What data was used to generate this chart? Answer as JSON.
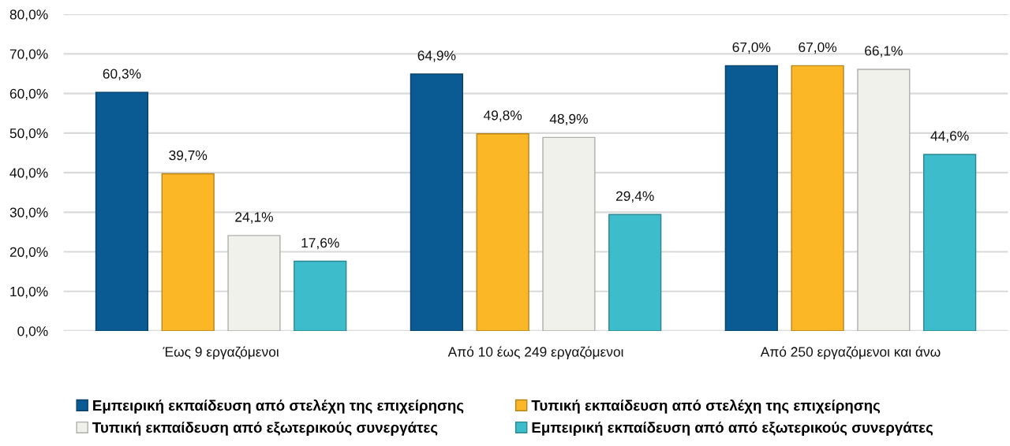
{
  "chart_data": {
    "type": "bar",
    "categories": [
      "Έως 9 εργαζόμενοι",
      "Από 10 έως 249 εργαζόμενοι",
      "Από 250 εργαζόμενοι και άνω"
    ],
    "series": [
      {
        "name": "Εμπειρική εκπαίδευση από στελέχη της επιχείρησης",
        "color": "#0a5a93",
        "values": [
          60.3,
          64.9,
          67.0
        ],
        "value_labels": [
          "60,3%",
          "64,9%",
          "67,0%"
        ]
      },
      {
        "name": "Τυπική εκπαίδευση από στελέχη της επιχείρησης",
        "color": "#fbb726",
        "values": [
          39.7,
          49.8,
          67.0
        ],
        "value_labels": [
          "39,7%",
          "49,8%",
          "67,0%"
        ]
      },
      {
        "name": "Τυπική εκπαίδευση από εξωτερικούς συνεργάτες",
        "color": "#f1f1ec",
        "values": [
          24.1,
          48.9,
          66.1
        ],
        "value_labels": [
          "24,1%",
          "48,9%",
          "66,1%"
        ]
      },
      {
        "name": "Εμπειρική εκπαίδευση από από εξωτερικούς συνεργάτες",
        "color": "#3dbccb",
        "values": [
          17.6,
          29.4,
          44.6
        ],
        "value_labels": [
          "17,6%",
          "29,4%",
          "44,6%"
        ]
      }
    ],
    "ylim": [
      0,
      80
    ],
    "yticks": [
      {
        "value": 0,
        "label": "0,0%"
      },
      {
        "value": 10,
        "label": "10,0%"
      },
      {
        "value": 20,
        "label": "20,0%"
      },
      {
        "value": 30,
        "label": "30,0%"
      },
      {
        "value": 40,
        "label": "40,0%"
      },
      {
        "value": 50,
        "label": "50,0%"
      },
      {
        "value": 60,
        "label": "60,0%"
      },
      {
        "value": 70,
        "label": "70,0%"
      },
      {
        "value": 80,
        "label": "80,0%"
      }
    ],
    "grid": "y",
    "legend": "bottom"
  }
}
